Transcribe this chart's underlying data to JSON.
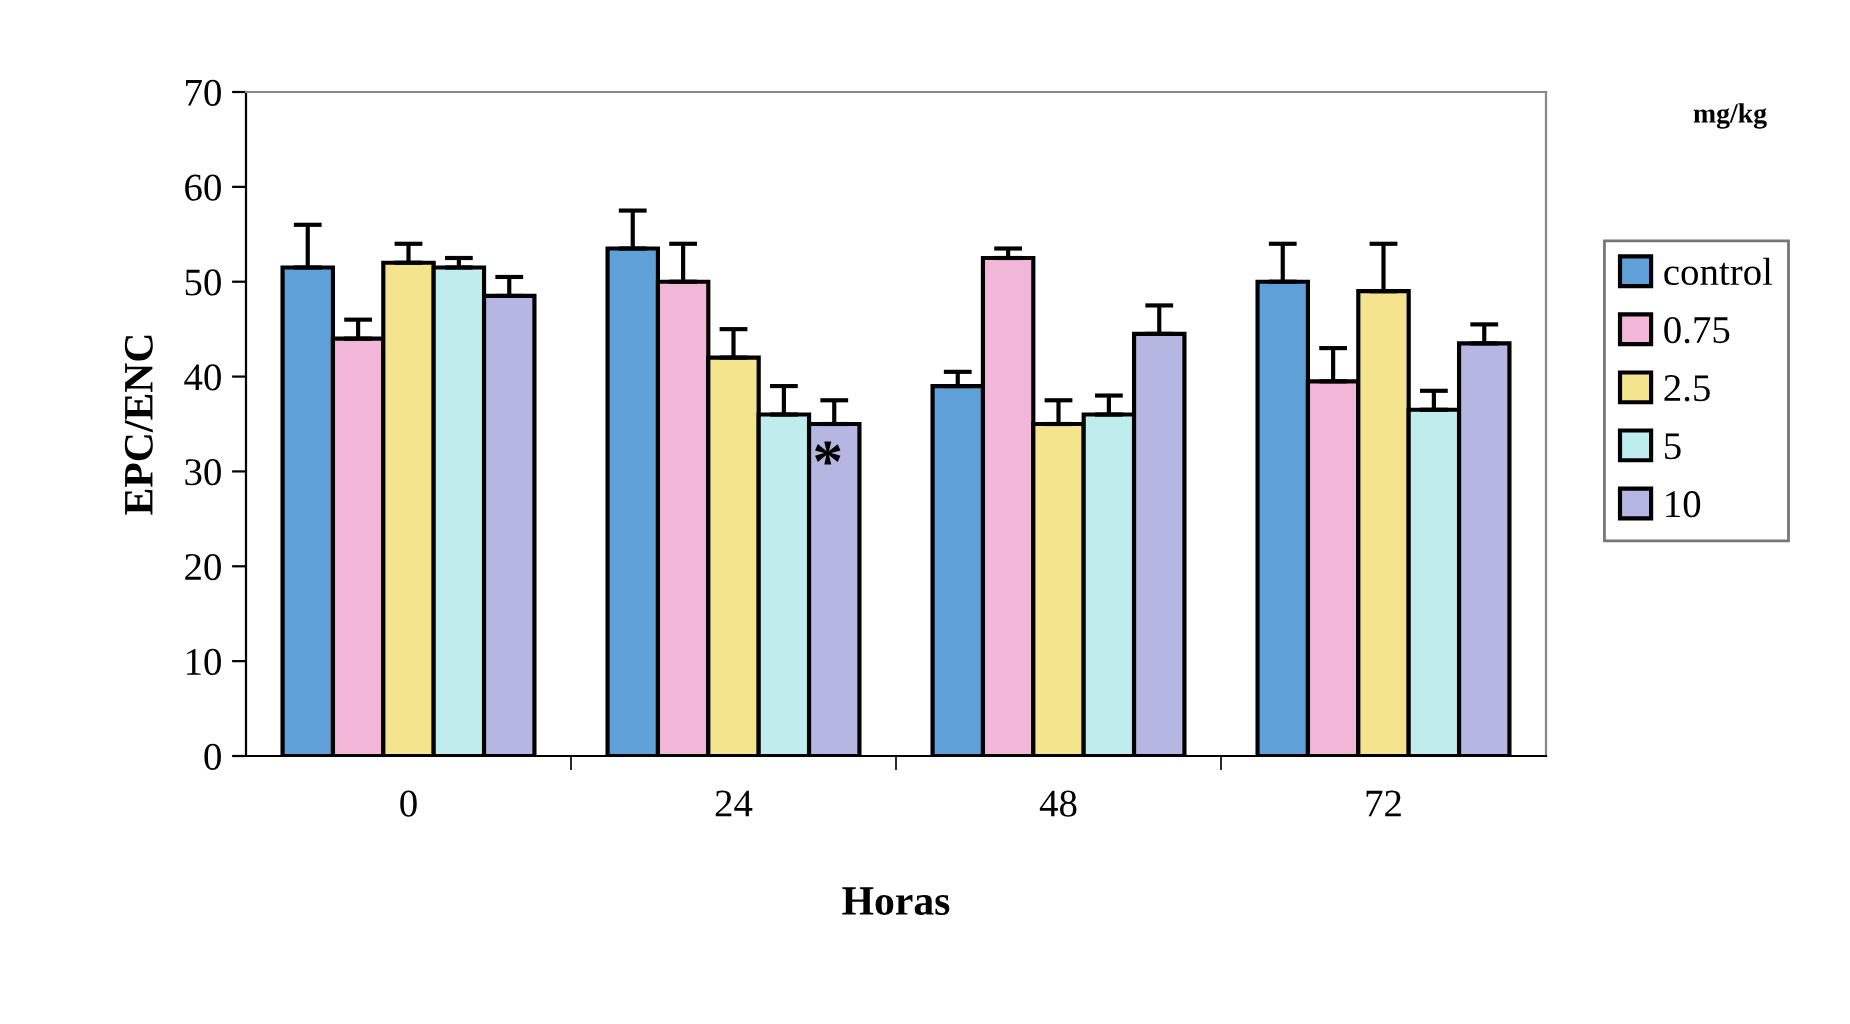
{
  "chart_data": {
    "type": "bar",
    "xlabel": "Horas",
    "ylabel": "EPC/ENC",
    "legend_title": "mg/kg",
    "categories": [
      "0",
      "24",
      "48",
      "72"
    ],
    "series": [
      {
        "name": "control",
        "color": "#5fa0d8",
        "values": [
          51.5,
          53.5,
          39,
          50
        ],
        "errors": [
          [
            51.5,
            56
          ],
          [
            53.5,
            57.5
          ],
          [
            39,
            40.5
          ],
          [
            50,
            54
          ]
        ]
      },
      {
        "name": "0.75",
        "color": "#f2b6d8",
        "values": [
          44,
          50,
          52.5,
          39.5
        ],
        "errors": [
          [
            44,
            46
          ],
          [
            50,
            54
          ],
          [
            52.5,
            53.5
          ],
          [
            39.5,
            43
          ]
        ]
      },
      {
        "name": "2.5",
        "color": "#f4e48e",
        "values": [
          52,
          42,
          35,
          49
        ],
        "errors": [
          [
            52,
            54
          ],
          [
            42,
            45
          ],
          [
            35,
            37.5
          ],
          [
            49,
            54
          ]
        ]
      },
      {
        "name": "5",
        "color": "#bfecec",
        "values": [
          51.5,
          36,
          36,
          36.5
        ],
        "errors": [
          [
            51.5,
            52.5
          ],
          [
            36,
            39
          ],
          [
            36,
            38
          ],
          [
            36.5,
            38.5
          ]
        ]
      },
      {
        "name": "10",
        "color": "#b6b6e2",
        "values": [
          48.5,
          35,
          44.5,
          43.5
        ],
        "errors": [
          [
            48.5,
            50.5
          ],
          [
            35,
            37.5
          ],
          [
            44.5,
            47.5
          ],
          [
            43.5,
            45.5
          ]
        ]
      }
    ],
    "annotations": [
      "*"
    ],
    "ylim": [
      0,
      70
    ],
    "yticks": [
      0,
      10,
      20,
      30,
      40,
      50,
      60,
      70
    ],
    "grid": false,
    "legend": "right"
  }
}
